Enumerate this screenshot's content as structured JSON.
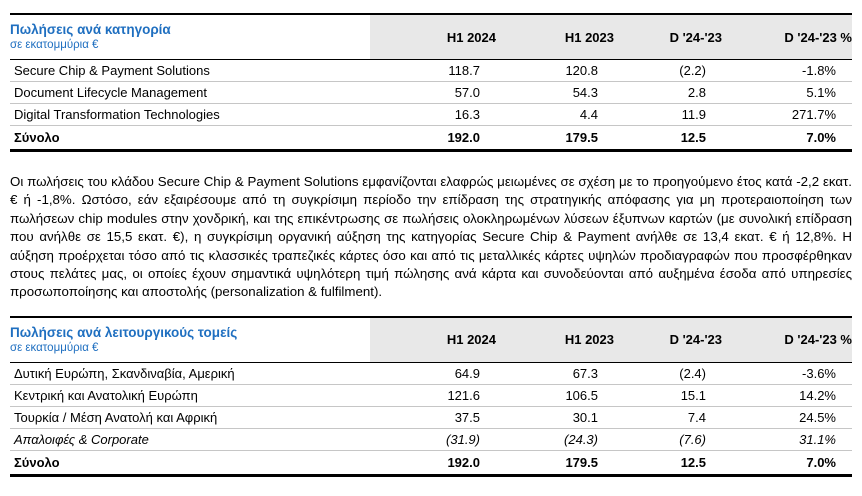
{
  "table1": {
    "title": "Πωλήσεις ανά κατηγορία",
    "subtitle": "σε εκατομμύρια €",
    "columns": [
      "H1 2024",
      "H1 2023",
      "D '24-'23",
      "D '24-'23 %"
    ],
    "rows": [
      {
        "label": "Secure Chip & Payment Solutions",
        "values": [
          "118.7",
          "120.8",
          "(2.2)",
          "-1.8%"
        ]
      },
      {
        "label": "Document Lifecycle Management",
        "values": [
          "57.0",
          "54.3",
          "2.8",
          "5.1%"
        ]
      },
      {
        "label": "Digital Transformation Technologies",
        "values": [
          "16.3",
          "4.4",
          "11.9",
          "271.7%"
        ]
      }
    ],
    "total": {
      "label": "Σύνολο",
      "values": [
        "192.0",
        "179.5",
        "12.5",
        "7.0%"
      ]
    }
  },
  "paragraph": "Οι πωλήσεις του κλάδου Secure Chip & Payment Solutions εμφανίζονται ελαφρώς μειωμένες σε σχέση με το προηγούμενο έτος κατά -2,2 εκατ. € ή -1,8%. Ωστόσο, εάν εξαιρέσουμε από τη συγκρίσιμη περίοδο την επίδραση της στρατηγικής απόφασης για μη προτεραιοποίηση των πωλήσεων chip modules στην χονδρική, και της επικέντρωσης σε πωλήσεις ολοκληρωμένων λύσεων έξυπνων καρτών (με συνολική επίδραση που ανήλθε σε 15,5 εκατ. €), η συγκρίσιμη οργανική αύξηση της κατηγορίας Secure Chip & Payment ανήλθε σε 13,4 εκατ. € ή 12,8%. Η αύξηση προέρχεται τόσο από τις κλασσικές τραπεζικές κάρτες όσο και από τις μεταλλικές κάρτες υψηλών προδιαγραφών που προσφέρθηκαν στους πελάτες μας, οι οποίες έχουν σημαντικά υψηλότερη τιμή πώλησης ανά κάρτα και συνοδεύονται από αυξημένα έσοδα από υπηρεσίες προσωποποίησης και αποστολής (personalization & fulfilment).",
  "table2": {
    "title": "Πωλήσεις ανά λειτουργικούς τομείς",
    "subtitle": "σε εκατομμύρια €",
    "columns": [
      "H1 2024",
      "H1 2023",
      "D '24-'23",
      "D '24-'23 %"
    ],
    "rows": [
      {
        "label": "Δυτική Ευρώπη, Σκανδιναβία, Αμερική",
        "values": [
          "64.9",
          "67.3",
          "(2.4)",
          "-3.6%"
        ]
      },
      {
        "label": "Κεντρική και Ανατολική Ευρώπη",
        "values": [
          "121.6",
          "106.5",
          "15.1",
          "14.2%"
        ]
      },
      {
        "label": "Τουρκία / Μέση Ανατολή και Αφρική",
        "values": [
          "37.5",
          "30.1",
          "7.4",
          "24.5%"
        ]
      },
      {
        "label": "Απαλοιφές & Corporate",
        "values": [
          "(31.9)",
          "(24.3)",
          "(7.6)",
          "31.1%"
        ],
        "italic": true
      }
    ],
    "total": {
      "label": "Σύνολο",
      "values": [
        "192.0",
        "179.5",
        "12.5",
        "7.0%"
      ]
    }
  }
}
